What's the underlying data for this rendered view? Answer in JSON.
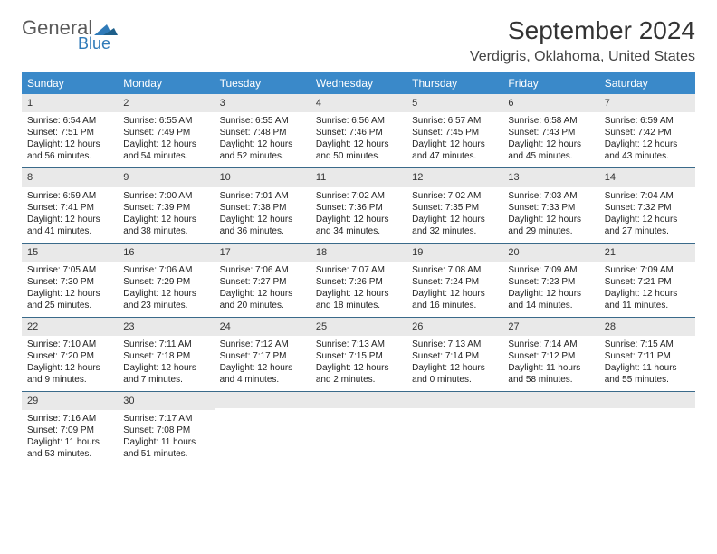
{
  "brand": {
    "line1": "General",
    "line2": "Blue"
  },
  "colors": {
    "header_bg": "#3a89c9",
    "header_text": "#ffffff",
    "daynum_bg": "#e9e9e9",
    "week_border": "#3a6a8a",
    "title_color": "#333333",
    "brand_gray": "#5a5a5a",
    "brand_blue": "#2f7ab8"
  },
  "title": "September 2024",
  "location": "Verdigris, Oklahoma, United States",
  "day_names": [
    "Sunday",
    "Monday",
    "Tuesday",
    "Wednesday",
    "Thursday",
    "Friday",
    "Saturday"
  ],
  "weeks": [
    [
      {
        "n": "1",
        "sr": "Sunrise: 6:54 AM",
        "ss": "Sunset: 7:51 PM",
        "d1": "Daylight: 12 hours",
        "d2": "and 56 minutes."
      },
      {
        "n": "2",
        "sr": "Sunrise: 6:55 AM",
        "ss": "Sunset: 7:49 PM",
        "d1": "Daylight: 12 hours",
        "d2": "and 54 minutes."
      },
      {
        "n": "3",
        "sr": "Sunrise: 6:55 AM",
        "ss": "Sunset: 7:48 PM",
        "d1": "Daylight: 12 hours",
        "d2": "and 52 minutes."
      },
      {
        "n": "4",
        "sr": "Sunrise: 6:56 AM",
        "ss": "Sunset: 7:46 PM",
        "d1": "Daylight: 12 hours",
        "d2": "and 50 minutes."
      },
      {
        "n": "5",
        "sr": "Sunrise: 6:57 AM",
        "ss": "Sunset: 7:45 PM",
        "d1": "Daylight: 12 hours",
        "d2": "and 47 minutes."
      },
      {
        "n": "6",
        "sr": "Sunrise: 6:58 AM",
        "ss": "Sunset: 7:43 PM",
        "d1": "Daylight: 12 hours",
        "d2": "and 45 minutes."
      },
      {
        "n": "7",
        "sr": "Sunrise: 6:59 AM",
        "ss": "Sunset: 7:42 PM",
        "d1": "Daylight: 12 hours",
        "d2": "and 43 minutes."
      }
    ],
    [
      {
        "n": "8",
        "sr": "Sunrise: 6:59 AM",
        "ss": "Sunset: 7:41 PM",
        "d1": "Daylight: 12 hours",
        "d2": "and 41 minutes."
      },
      {
        "n": "9",
        "sr": "Sunrise: 7:00 AM",
        "ss": "Sunset: 7:39 PM",
        "d1": "Daylight: 12 hours",
        "d2": "and 38 minutes."
      },
      {
        "n": "10",
        "sr": "Sunrise: 7:01 AM",
        "ss": "Sunset: 7:38 PM",
        "d1": "Daylight: 12 hours",
        "d2": "and 36 minutes."
      },
      {
        "n": "11",
        "sr": "Sunrise: 7:02 AM",
        "ss": "Sunset: 7:36 PM",
        "d1": "Daylight: 12 hours",
        "d2": "and 34 minutes."
      },
      {
        "n": "12",
        "sr": "Sunrise: 7:02 AM",
        "ss": "Sunset: 7:35 PM",
        "d1": "Daylight: 12 hours",
        "d2": "and 32 minutes."
      },
      {
        "n": "13",
        "sr": "Sunrise: 7:03 AM",
        "ss": "Sunset: 7:33 PM",
        "d1": "Daylight: 12 hours",
        "d2": "and 29 minutes."
      },
      {
        "n": "14",
        "sr": "Sunrise: 7:04 AM",
        "ss": "Sunset: 7:32 PM",
        "d1": "Daylight: 12 hours",
        "d2": "and 27 minutes."
      }
    ],
    [
      {
        "n": "15",
        "sr": "Sunrise: 7:05 AM",
        "ss": "Sunset: 7:30 PM",
        "d1": "Daylight: 12 hours",
        "d2": "and 25 minutes."
      },
      {
        "n": "16",
        "sr": "Sunrise: 7:06 AM",
        "ss": "Sunset: 7:29 PM",
        "d1": "Daylight: 12 hours",
        "d2": "and 23 minutes."
      },
      {
        "n": "17",
        "sr": "Sunrise: 7:06 AM",
        "ss": "Sunset: 7:27 PM",
        "d1": "Daylight: 12 hours",
        "d2": "and 20 minutes."
      },
      {
        "n": "18",
        "sr": "Sunrise: 7:07 AM",
        "ss": "Sunset: 7:26 PM",
        "d1": "Daylight: 12 hours",
        "d2": "and 18 minutes."
      },
      {
        "n": "19",
        "sr": "Sunrise: 7:08 AM",
        "ss": "Sunset: 7:24 PM",
        "d1": "Daylight: 12 hours",
        "d2": "and 16 minutes."
      },
      {
        "n": "20",
        "sr": "Sunrise: 7:09 AM",
        "ss": "Sunset: 7:23 PM",
        "d1": "Daylight: 12 hours",
        "d2": "and 14 minutes."
      },
      {
        "n": "21",
        "sr": "Sunrise: 7:09 AM",
        "ss": "Sunset: 7:21 PM",
        "d1": "Daylight: 12 hours",
        "d2": "and 11 minutes."
      }
    ],
    [
      {
        "n": "22",
        "sr": "Sunrise: 7:10 AM",
        "ss": "Sunset: 7:20 PM",
        "d1": "Daylight: 12 hours",
        "d2": "and 9 minutes."
      },
      {
        "n": "23",
        "sr": "Sunrise: 7:11 AM",
        "ss": "Sunset: 7:18 PM",
        "d1": "Daylight: 12 hours",
        "d2": "and 7 minutes."
      },
      {
        "n": "24",
        "sr": "Sunrise: 7:12 AM",
        "ss": "Sunset: 7:17 PM",
        "d1": "Daylight: 12 hours",
        "d2": "and 4 minutes."
      },
      {
        "n": "25",
        "sr": "Sunrise: 7:13 AM",
        "ss": "Sunset: 7:15 PM",
        "d1": "Daylight: 12 hours",
        "d2": "and 2 minutes."
      },
      {
        "n": "26",
        "sr": "Sunrise: 7:13 AM",
        "ss": "Sunset: 7:14 PM",
        "d1": "Daylight: 12 hours",
        "d2": "and 0 minutes."
      },
      {
        "n": "27",
        "sr": "Sunrise: 7:14 AM",
        "ss": "Sunset: 7:12 PM",
        "d1": "Daylight: 11 hours",
        "d2": "and 58 minutes."
      },
      {
        "n": "28",
        "sr": "Sunrise: 7:15 AM",
        "ss": "Sunset: 7:11 PM",
        "d1": "Daylight: 11 hours",
        "d2": "and 55 minutes."
      }
    ],
    [
      {
        "n": "29",
        "sr": "Sunrise: 7:16 AM",
        "ss": "Sunset: 7:09 PM",
        "d1": "Daylight: 11 hours",
        "d2": "and 53 minutes."
      },
      {
        "n": "30",
        "sr": "Sunrise: 7:17 AM",
        "ss": "Sunset: 7:08 PM",
        "d1": "Daylight: 11 hours",
        "d2": "and 51 minutes."
      },
      {
        "n": "",
        "sr": "",
        "ss": "",
        "d1": "",
        "d2": ""
      },
      {
        "n": "",
        "sr": "",
        "ss": "",
        "d1": "",
        "d2": ""
      },
      {
        "n": "",
        "sr": "",
        "ss": "",
        "d1": "",
        "d2": ""
      },
      {
        "n": "",
        "sr": "",
        "ss": "",
        "d1": "",
        "d2": ""
      },
      {
        "n": "",
        "sr": "",
        "ss": "",
        "d1": "",
        "d2": ""
      }
    ]
  ]
}
